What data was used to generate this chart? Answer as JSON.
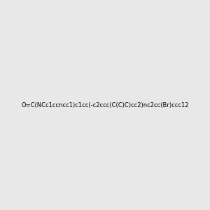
{
  "smiles": "O=C(NCc1ccncc1)c1cc(-c2ccc(C(C)C)cc2)nc2cc(Br)ccc12",
  "title": "",
  "background_color": "#e8e8e8",
  "fig_width": 3.0,
  "fig_height": 3.0,
  "dpi": 100
}
